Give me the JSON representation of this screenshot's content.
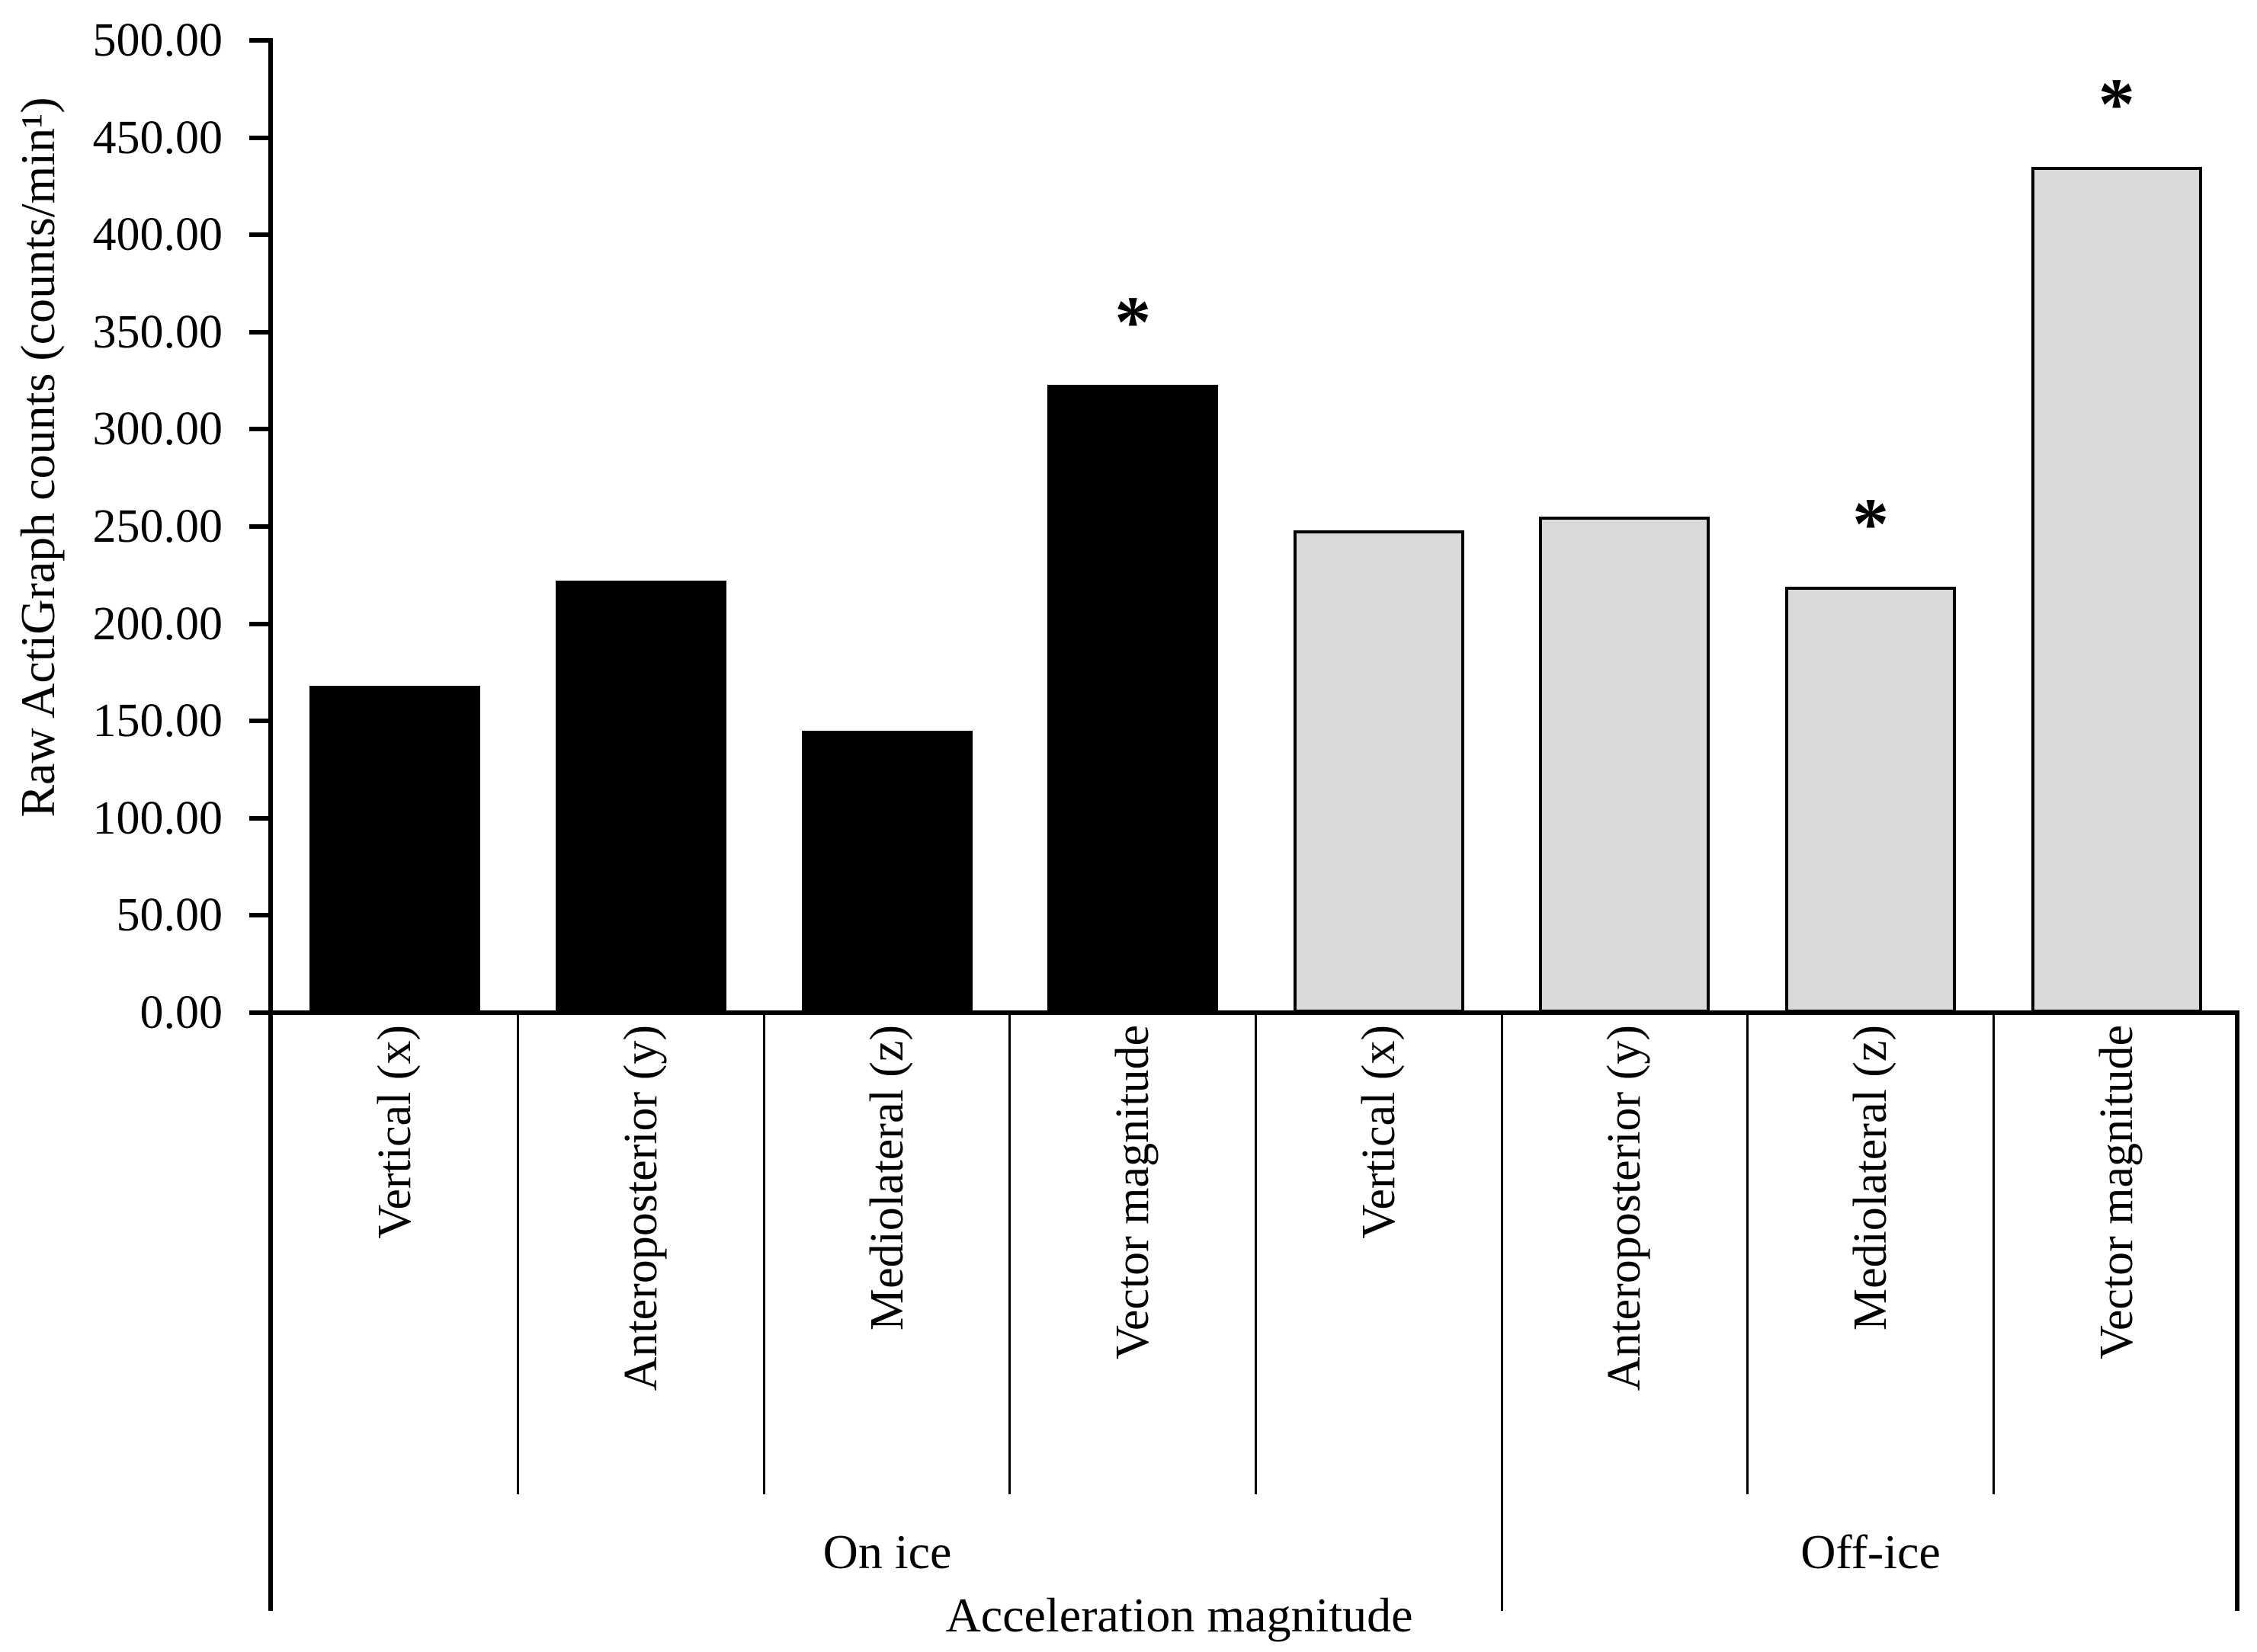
{
  "chart_data": {
    "type": "bar",
    "title": "",
    "ylabel": "Raw ActiGraph counts (counts/min¹)",
    "xlabel": "Acceleration magnitude",
    "y_axis": {
      "min": 0,
      "max": 500,
      "step": 50,
      "decimals": 2
    },
    "grid": false,
    "legend": "none",
    "significance_marker": "*",
    "group_labels": [
      "On ice",
      "Off-ice"
    ],
    "colors": {
      "on_ice_bar": "#000000",
      "off_ice_bar": "#d9d9d9",
      "outline": "#000000",
      "background": "#ffffff"
    },
    "bars": [
      {
        "label": "Vertical (x)",
        "group": "On ice",
        "value": 168,
        "fill": "#000000",
        "significant": false
      },
      {
        "label": "Anteroposterior (y)",
        "group": "On ice",
        "value": 222,
        "fill": "#000000",
        "significant": false
      },
      {
        "label": "Mediolateral (z)",
        "group": "On ice",
        "value": 145,
        "fill": "#000000",
        "significant": false
      },
      {
        "label": "Vector magnitude",
        "group": "On ice",
        "value": 323,
        "fill": "#000000",
        "significant": true
      },
      {
        "label": "Vertical (x)",
        "group": "Off-ice",
        "value": 248,
        "fill": "#d9d9d9",
        "significant": false
      },
      {
        "label": "Anteroposterior (y)",
        "group": "Off-ice",
        "value": 255,
        "fill": "#d9d9d9",
        "significant": false
      },
      {
        "label": "Mediolateral (z)",
        "group": "Off-ice",
        "value": 219,
        "fill": "#d9d9d9",
        "significant": true
      },
      {
        "label": "Vector magnitude",
        "group": "Off-ice",
        "value": 435,
        "fill": "#d9d9d9",
        "significant": true
      }
    ]
  }
}
